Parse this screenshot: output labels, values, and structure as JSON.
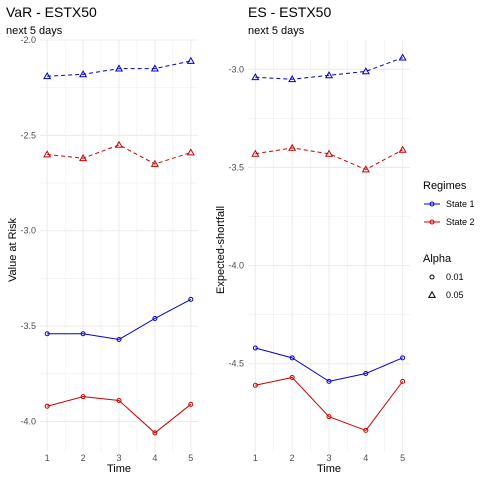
{
  "chart_data": [
    {
      "type": "line",
      "title": "VaR - ESTX50",
      "subtitle": "next 5 days",
      "xlabel": "Time",
      "ylabel": "Value at Risk",
      "x": [
        1,
        2,
        3,
        4,
        5
      ],
      "ylim": [
        -4.16,
        -2.0
      ],
      "yticks": [
        -2.0,
        -2.5,
        -3.0,
        -3.5,
        -4.0
      ],
      "ytick_labels": [
        "-2.0",
        "-2.5",
        "-3.0",
        "-3.5",
        "-4.0"
      ],
      "series": [
        {
          "name": "State 1",
          "alpha": "0.01",
          "color": "#0000CD",
          "values": [
            -3.54,
            -3.54,
            -3.57,
            -3.46,
            -3.36
          ]
        },
        {
          "name": "State 2",
          "alpha": "0.01",
          "color": "#CD0000",
          "values": [
            -3.92,
            -3.87,
            -3.89,
            -4.06,
            -3.91
          ]
        },
        {
          "name": "State 1",
          "alpha": "0.05",
          "color": "#0000CD",
          "values": [
            -2.19,
            -2.18,
            -2.15,
            -2.15,
            -2.11
          ]
        },
        {
          "name": "State 2",
          "alpha": "0.05",
          "color": "#CD0000",
          "values": [
            -2.6,
            -2.62,
            -2.55,
            -2.65,
            -2.59
          ]
        }
      ]
    },
    {
      "type": "line",
      "title": "ES - ESTX50",
      "subtitle": "next 5 days",
      "xlabel": "Time",
      "ylabel": "Expected-shortfall",
      "x": [
        1,
        2,
        3,
        4,
        5
      ],
      "ylim": [
        -4.95,
        -2.85
      ],
      "yticks": [
        -3.0,
        -3.5,
        -4.0,
        -4.5
      ],
      "ytick_labels": [
        "-3.0",
        "-3.5",
        "-4.0",
        "-4.5"
      ],
      "series": [
        {
          "name": "State 1",
          "alpha": "0.01",
          "color": "#0000CD",
          "values": [
            -4.42,
            -4.47,
            -4.59,
            -4.55,
            -4.47
          ]
        },
        {
          "name": "State 2",
          "alpha": "0.01",
          "color": "#CD0000",
          "values": [
            -4.61,
            -4.57,
            -4.77,
            -4.84,
            -4.59
          ]
        },
        {
          "name": "State 1",
          "alpha": "0.05",
          "color": "#0000CD",
          "values": [
            -3.04,
            -3.05,
            -3.03,
            -3.01,
            -2.94
          ]
        },
        {
          "name": "State 2",
          "alpha": "0.05",
          "color": "#CD0000",
          "values": [
            -3.43,
            -3.4,
            -3.43,
            -3.51,
            -3.41
          ]
        }
      ]
    }
  ],
  "legend": {
    "placement": "right",
    "regimes_title": "Regimes",
    "regimes": [
      {
        "label": "State 1",
        "color": "#0000CD"
      },
      {
        "label": "State 2",
        "color": "#CD0000"
      }
    ],
    "alpha_title": "Alpha",
    "alpha": [
      {
        "label": "0.01",
        "shape": "circle-icon"
      },
      {
        "label": "0.05",
        "shape": "triangle-icon"
      }
    ]
  },
  "style": {
    "grid": true,
    "grid_color": "#ebebeb",
    "tick_label_color": "#4d4d4d"
  }
}
